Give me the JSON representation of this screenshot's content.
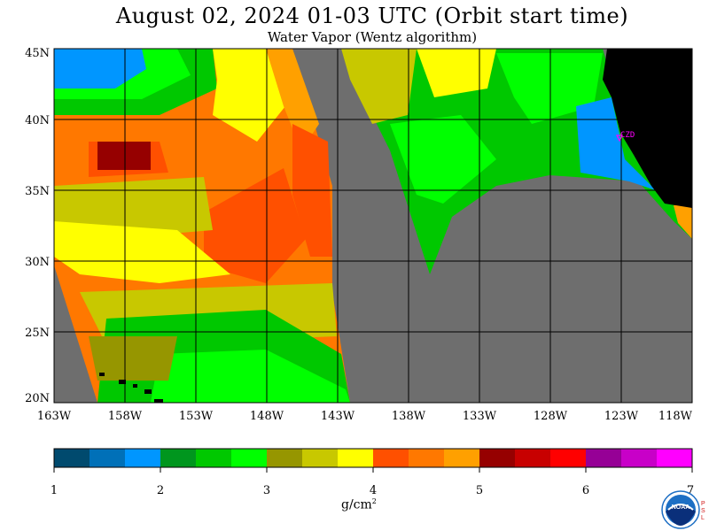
{
  "header": {
    "title": "August 02, 2024  01-03 UTC  (Orbit start time)",
    "subtitle": "Water Vapor (Wentz algorithm)"
  },
  "map": {
    "latitude_labels": [
      "45N",
      "40N",
      "35N",
      "30N",
      "25N",
      "20N"
    ],
    "longitude_labels": [
      "163W",
      "158W",
      "153W",
      "148W",
      "143W",
      "138W",
      "133W",
      "128W",
      "123W",
      "118W"
    ],
    "station_label": "CZD",
    "colors": {
      "no_data": "#6e6e6e",
      "land": "#000000",
      "station": "#ff00ff",
      "gridline": "#000000"
    }
  },
  "colorbar": {
    "ticks": [
      "1",
      "2",
      "3",
      "4",
      "5",
      "6",
      "7"
    ],
    "units": "g/cm",
    "units_exponent": "2",
    "colors": [
      "#004a6e",
      "#0070b8",
      "#0096ff",
      "#00961e",
      "#00c800",
      "#00ff00",
      "#969600",
      "#c8c800",
      "#ffff00",
      "#ff5000",
      "#ff7800",
      "#ffa000",
      "#960000",
      "#c80000",
      "#ff0000",
      "#960096",
      "#c800c8",
      "#ff00ff"
    ]
  },
  "logo": {
    "text": "NOAA",
    "side_text": [
      "P",
      "S",
      "L"
    ]
  }
}
